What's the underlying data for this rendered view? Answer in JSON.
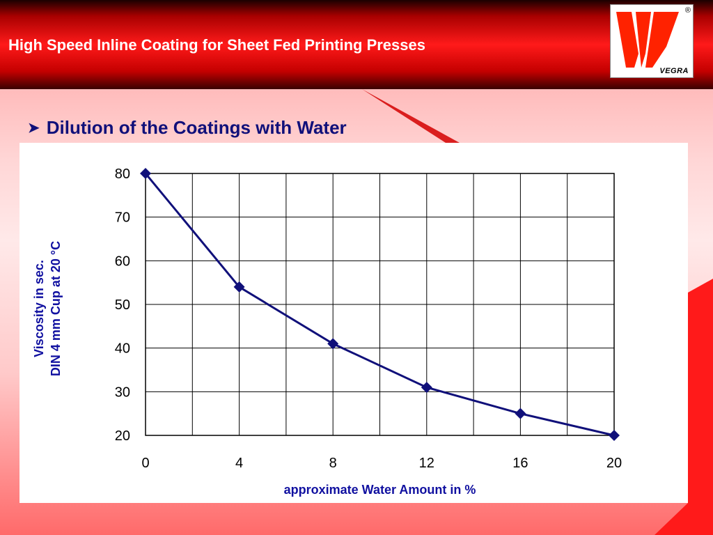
{
  "header": {
    "title": "High Speed Inline Coating for Sheet Fed Printing Presses",
    "logo_text": "VEGRA",
    "registered_mark": "®"
  },
  "bullet": {
    "icon": "arrow-bullet-icon",
    "text": "Dilution of the Coatings with Water"
  },
  "colors": {
    "header_red": "#ff1a1a",
    "series": "#10107a",
    "label": "#1010a0"
  },
  "chart_data": {
    "type": "line",
    "x": [
      0,
      4,
      8,
      12,
      16,
      20
    ],
    "series": [
      {
        "values": [
          80,
          54,
          41,
          31,
          25,
          20
        ]
      }
    ],
    "xlabel": "approximate Water Amount in %",
    "ylabel_lines": [
      "Viscosity in sec.",
      "DIN 4 mm Cup at 20 °C"
    ],
    "xlim": [
      0,
      20
    ],
    "ylim": [
      20,
      80
    ],
    "x_ticks": [
      0,
      4,
      8,
      12,
      16,
      20
    ],
    "y_ticks": [
      20,
      30,
      40,
      50,
      60,
      70,
      80
    ],
    "x_grid_step": 2,
    "grid": true,
    "marker": "diamond"
  }
}
